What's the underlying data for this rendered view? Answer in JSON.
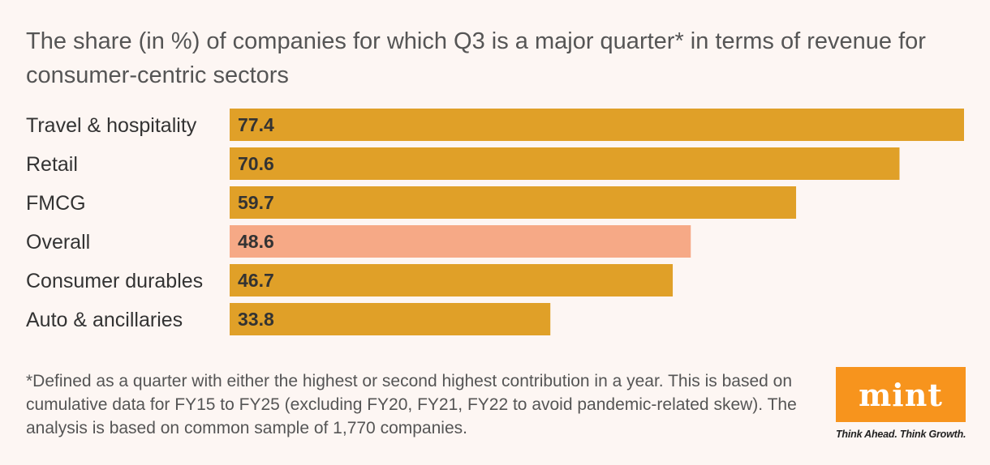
{
  "chart_data": {
    "type": "bar",
    "orientation": "horizontal",
    "title": "The share (in %) of companies for which Q3 is a major quarter* in terms of revenue for consumer-centric sectors",
    "categories": [
      "Travel & hospitality",
      "Retail",
      "FMCG",
      "Overall",
      "Consumer durables",
      "Auto & ancillaries"
    ],
    "values": [
      77.4,
      70.6,
      59.7,
      48.6,
      46.7,
      33.8
    ],
    "value_labels": [
      "77.4",
      "70.6",
      "59.7",
      "48.6",
      "46.7",
      "33.8"
    ],
    "highlight_category": "Overall",
    "colors": {
      "bar": "#e0a028",
      "highlight": "#f6a986"
    },
    "xlim": [
      0,
      77.4
    ],
    "grid": false,
    "xlabel": "",
    "ylabel": ""
  },
  "footnote": "*Defined as a quarter with either the highest or second highest contribution in a year. This is based on cumulative data for FY15 to FY25 (excluding FY20, FY21, FY22 to avoid pandemic-related skew). The analysis is based on common sample of 1,770 companies.",
  "logo": {
    "text": "mint",
    "tagline": "Think Ahead. Think Growth.",
    "color": "#f7941d"
  }
}
